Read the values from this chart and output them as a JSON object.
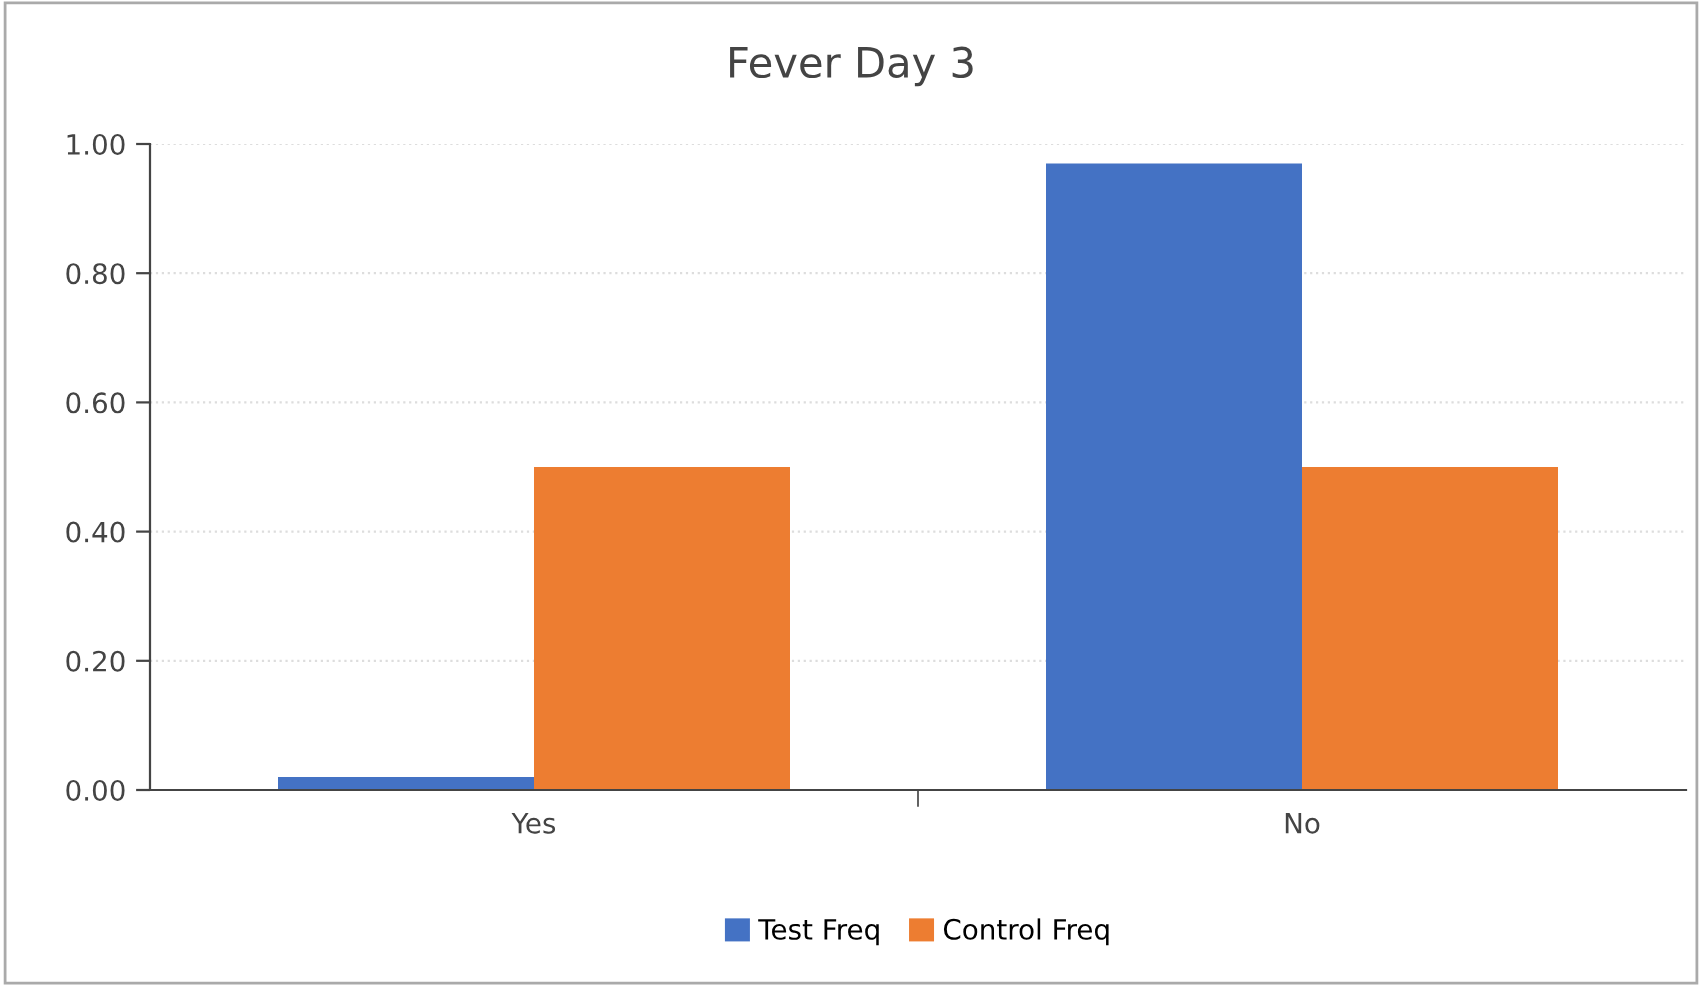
{
  "chart_data": {
    "type": "bar",
    "title": "Fever Day 3",
    "categories": [
      "Yes",
      "No"
    ],
    "series": [
      {
        "name": "Test Freq",
        "color": "#4472c4",
        "values": [
          0.02,
          0.97
        ]
      },
      {
        "name": "Control Freq",
        "color": "#ed7d31",
        "values": [
          0.5,
          0.5
        ]
      }
    ],
    "ylim": [
      0,
      1
    ],
    "yticks": [
      {
        "value": 0,
        "label": "0.00"
      },
      {
        "value": 0.2,
        "label": "0.20"
      },
      {
        "value": 0.4,
        "label": "0.40"
      },
      {
        "value": 0.6,
        "label": "0.60"
      },
      {
        "value": 0.8,
        "label": "0.80"
      },
      {
        "value": 1,
        "label": "1.00"
      }
    ],
    "grid": "y",
    "legend": "bottom"
  }
}
